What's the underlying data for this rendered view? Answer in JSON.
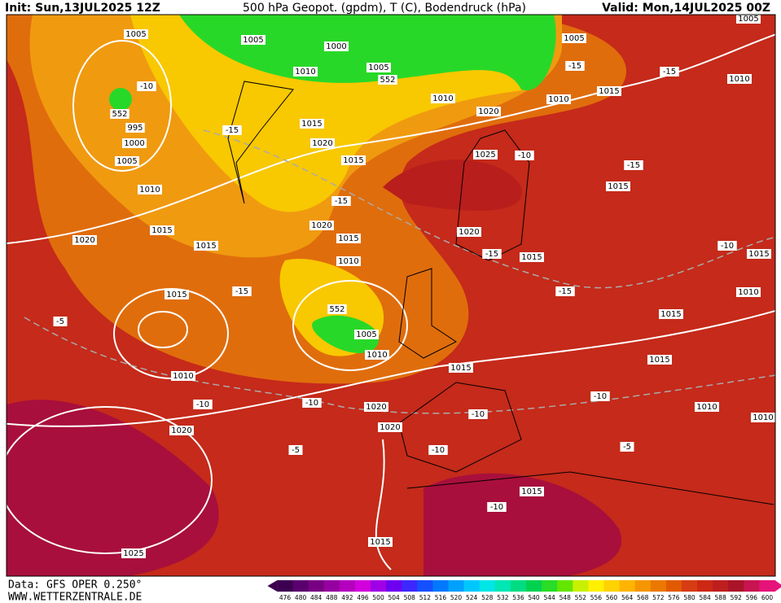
{
  "header": {
    "init": "Init: Sun,13JUL2025 12Z",
    "title": "500 hPa Geopot. (gpdm), T (C), Bodendruck (hPa)",
    "valid": "Valid: Mon,14JUL2025 00Z"
  },
  "footer": {
    "source": "Data: GFS OPER 0.250°",
    "website": "WWW.WETTERZENTRALE.DE"
  },
  "legend": {
    "labels": [
      "476",
      "480",
      "484",
      "488",
      "492",
      "496",
      "500",
      "504",
      "508",
      "512",
      "516",
      "520",
      "524",
      "528",
      "532",
      "536",
      "540",
      "544",
      "548",
      "552",
      "556",
      "560",
      "564",
      "568",
      "572",
      "576",
      "580",
      "584",
      "588",
      "592",
      "596",
      "600"
    ],
    "colors": [
      "#3d0050",
      "#5a006e",
      "#780082",
      "#9600a0",
      "#b400be",
      "#d200dc",
      "#a000e6",
      "#6e00f0",
      "#3c28ff",
      "#1450ff",
      "#0078ff",
      "#00a0ff",
      "#00c8ff",
      "#00e6e6",
      "#00e6b4",
      "#00dc82",
      "#00d250",
      "#28dc28",
      "#64e600",
      "#c8f000",
      "#fff000",
      "#ffd200",
      "#ffb400",
      "#f59600",
      "#eb7800",
      "#e15a00",
      "#d73c14",
      "#cd2814",
      "#be1e1e",
      "#aa1428",
      "#c81450",
      "#e6147a"
    ]
  },
  "map_labels": [
    "1005",
    "1005",
    "1000",
    "1005",
    "1010",
    "1005",
    "1005",
    "1010",
    "1010",
    "1015",
    "1010",
    "1020",
    "995",
    "1000",
    "1005",
    "1015",
    "1020",
    "1015",
    "1025",
    "1015",
    "1010",
    "1020",
    "1015",
    "1020",
    "1015",
    "1015",
    "1020",
    "1015",
    "1010",
    "1015",
    "1010",
    "1015",
    "1015",
    "1005",
    "1010",
    "1015",
    "1010",
    "1015",
    "1020",
    "1010",
    "1010",
    "1020",
    "1020",
    "1015",
    "1015",
    "1025",
    "-15",
    "-10",
    "-15",
    "-15",
    "-15",
    "-10",
    "-15",
    "-15",
    "-15",
    "-15",
    "-10",
    "-5",
    "-10",
    "-10",
    "-10",
    "-10",
    "-10",
    "-5",
    "-5",
    "-10",
    "552",
    "552",
    "552"
  ]
}
